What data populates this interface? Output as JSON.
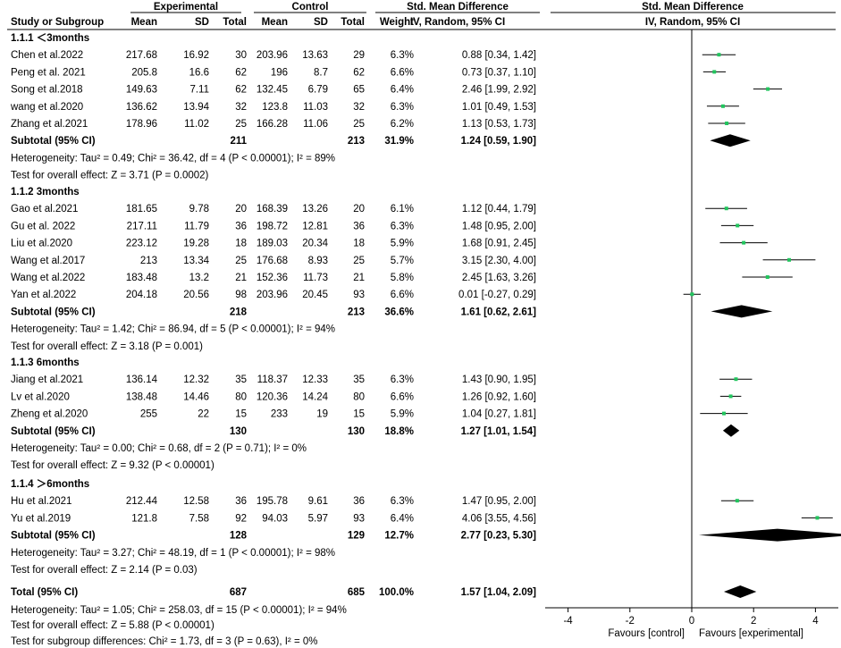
{
  "header": {
    "group1": "Experimental",
    "group2": "Control",
    "smd_title": "Std. Mean Difference",
    "method": "IV, Random, 95% CI",
    "plot_title": "Std. Mean Difference",
    "plot_method": "IV, Random, 95% CI",
    "col_study": "Study or Subgroup",
    "col_mean1": "Mean",
    "col_sd1": "SD",
    "col_total1": "Total",
    "col_mean2": "Mean",
    "col_sd2": "SD",
    "col_total2": "Total",
    "col_weight": "Weight"
  },
  "chart_data": {
    "type": "forest",
    "x_axis": {
      "min": -4.7,
      "max": 4.7,
      "ticks": [
        -4,
        -2,
        0,
        2,
        4
      ],
      "tick_labels": [
        "-4",
        "-2",
        "0",
        "2",
        "4"
      ],
      "label_left": "Favours [control]",
      "label_right": "Favours [experimental]"
    },
    "subgroups": [
      {
        "title": "1.1.1 ＜3months",
        "studies": [
          {
            "name": "Chen et al.2022",
            "m1": "217.68",
            "sd1": "16.92",
            "n1": "30",
            "m2": "203.96",
            "sd2": "13.63",
            "n2": "29",
            "weight": "6.3%",
            "ci_text": "0.88 [0.34, 1.42]",
            "est": 0.88,
            "lo": 0.34,
            "hi": 1.42
          },
          {
            "name": "Peng et al. 2021",
            "m1": "205.8",
            "sd1": "16.6",
            "n1": "62",
            "m2": "196",
            "sd2": "8.7",
            "n2": "62",
            "weight": "6.6%",
            "ci_text": "0.73 [0.37, 1.10]",
            "est": 0.73,
            "lo": 0.37,
            "hi": 1.1
          },
          {
            "name": "Song et al.2018",
            "m1": "149.63",
            "sd1": "7.11",
            "n1": "62",
            "m2": "132.45",
            "sd2": "6.79",
            "n2": "65",
            "weight": "6.4%",
            "ci_text": "2.46 [1.99, 2.92]",
            "est": 2.46,
            "lo": 1.99,
            "hi": 2.92
          },
          {
            "name": "wang et al.2020",
            "m1": "136.62",
            "sd1": "13.94",
            "n1": "32",
            "m2": "123.8",
            "sd2": "11.03",
            "n2": "32",
            "weight": "6.3%",
            "ci_text": "1.01 [0.49, 1.53]",
            "est": 1.01,
            "lo": 0.49,
            "hi": 1.53
          },
          {
            "name": "Zhang et al.2021",
            "m1": "178.96",
            "sd1": "11.02",
            "n1": "25",
            "m2": "166.28",
            "sd2": "11.06",
            "n2": "25",
            "weight": "6.2%",
            "ci_text": "1.13 [0.53, 1.73]",
            "est": 1.13,
            "lo": 0.53,
            "hi": 1.73
          }
        ],
        "subtotal": {
          "label": "Subtotal (95% CI)",
          "n1": "211",
          "n2": "213",
          "weight": "31.9%",
          "ci_text": "1.24 [0.59, 1.90]",
          "est": 1.24,
          "lo": 0.59,
          "hi": 1.9
        },
        "heterogeneity": "Heterogeneity: Tau² = 0.49; Chi² = 36.42, df = 4 (P < 0.00001); I² = 89%",
        "overall_effect": "Test for overall effect: Z = 3.71 (P = 0.0002)"
      },
      {
        "title": "1.1.2 3months",
        "studies": [
          {
            "name": "Gao et al.2021",
            "m1": "181.65",
            "sd1": "9.78",
            "n1": "20",
            "m2": "168.39",
            "sd2": "13.26",
            "n2": "20",
            "weight": "6.1%",
            "ci_text": "1.12 [0.44, 1.79]",
            "est": 1.12,
            "lo": 0.44,
            "hi": 1.79
          },
          {
            "name": "Gu et al. 2022",
            "m1": "217.11",
            "sd1": "11.79",
            "n1": "36",
            "m2": "198.72",
            "sd2": "12.81",
            "n2": "36",
            "weight": "6.3%",
            "ci_text": "1.48 [0.95, 2.00]",
            "est": 1.48,
            "lo": 0.95,
            "hi": 2.0
          },
          {
            "name": "Liu et al.2020",
            "m1": "223.12",
            "sd1": "19.28",
            "n1": "18",
            "m2": "189.03",
            "sd2": "20.34",
            "n2": "18",
            "weight": "5.9%",
            "ci_text": "1.68 [0.91, 2.45]",
            "est": 1.68,
            "lo": 0.91,
            "hi": 2.45
          },
          {
            "name": "Wang et al.2017",
            "m1": "213",
            "sd1": "13.34",
            "n1": "25",
            "m2": "176.68",
            "sd2": "8.93",
            "n2": "25",
            "weight": "5.7%",
            "ci_text": "3.15 [2.30, 4.00]",
            "est": 3.15,
            "lo": 2.3,
            "hi": 4.0
          },
          {
            "name": "Wang et al.2022",
            "m1": "183.48",
            "sd1": "13.2",
            "n1": "21",
            "m2": "152.36",
            "sd2": "11.73",
            "n2": "21",
            "weight": "5.8%",
            "ci_text": "2.45 [1.63, 3.26]",
            "est": 2.45,
            "lo": 1.63,
            "hi": 3.26
          },
          {
            "name": "Yan et al.2022",
            "m1": "204.18",
            "sd1": "20.56",
            "n1": "98",
            "m2": "203.96",
            "sd2": "20.45",
            "n2": "93",
            "weight": "6.6%",
            "ci_text": "0.01 [-0.27, 0.29]",
            "est": 0.01,
            "lo": -0.27,
            "hi": 0.29
          }
        ],
        "subtotal": {
          "label": "Subtotal (95% CI)",
          "n1": "218",
          "n2": "213",
          "weight": "36.6%",
          "ci_text": "1.61 [0.62, 2.61]",
          "est": 1.61,
          "lo": 0.62,
          "hi": 2.61
        },
        "heterogeneity": "Heterogeneity: Tau² = 1.42; Chi² = 86.94, df = 5 (P < 0.00001); I² = 94%",
        "overall_effect": "Test for overall effect: Z = 3.18 (P = 0.001)"
      },
      {
        "title": "1.1.3 6months",
        "studies": [
          {
            "name": "Jiang et al.2021",
            "m1": "136.14",
            "sd1": "12.32",
            "n1": "35",
            "m2": "118.37",
            "sd2": "12.33",
            "n2": "35",
            "weight": "6.3%",
            "ci_text": "1.43 [0.90, 1.95]",
            "est": 1.43,
            "lo": 0.9,
            "hi": 1.95
          },
          {
            "name": "Lv et al.2020",
            "m1": "138.48",
            "sd1": "14.46",
            "n1": "80",
            "m2": "120.36",
            "sd2": "14.24",
            "n2": "80",
            "weight": "6.6%",
            "ci_text": "1.26 [0.92, 1.60]",
            "est": 1.26,
            "lo": 0.92,
            "hi": 1.6
          },
          {
            "name": "Zheng et al.2020",
            "m1": "255",
            "sd1": "22",
            "n1": "15",
            "m2": "233",
            "sd2": "19",
            "n2": "15",
            "weight": "5.9%",
            "ci_text": "1.04 [0.27, 1.81]",
            "est": 1.04,
            "lo": 0.27,
            "hi": 1.81
          }
        ],
        "subtotal": {
          "label": "Subtotal (95% CI)",
          "n1": "130",
          "n2": "130",
          "weight": "18.8%",
          "ci_text": "1.27 [1.01, 1.54]",
          "est": 1.27,
          "lo": 1.01,
          "hi": 1.54
        },
        "heterogeneity": "Heterogeneity: Tau² = 0.00; Chi² = 0.68, df = 2 (P = 0.71); I² = 0%",
        "overall_effect": "Test for overall effect: Z = 9.32 (P < 0.00001)"
      },
      {
        "title": "1.1.4 ＞6months",
        "studies": [
          {
            "name": "Hu et al.2021",
            "m1": "212.44",
            "sd1": "12.58",
            "n1": "36",
            "m2": "195.78",
            "sd2": "9.61",
            "n2": "36",
            "weight": "6.3%",
            "ci_text": "1.47 [0.95, 2.00]",
            "est": 1.47,
            "lo": 0.95,
            "hi": 2.0
          },
          {
            "name": "Yu et al.2019",
            "m1": "121.8",
            "sd1": "7.58",
            "n1": "92",
            "m2": "94.03",
            "sd2": "5.97",
            "n2": "93",
            "weight": "6.4%",
            "ci_text": "4.06 [3.55, 4.56]",
            "est": 4.06,
            "lo": 3.55,
            "hi": 4.56
          }
        ],
        "subtotal": {
          "label": "Subtotal (95% CI)",
          "n1": "128",
          "n2": "129",
          "weight": "12.7%",
          "ci_text": "2.77 [0.23, 5.30]",
          "est": 2.77,
          "lo": 0.23,
          "hi": 5.3
        },
        "heterogeneity": "Heterogeneity: Tau² = 3.27; Chi² = 48.19, df = 1 (P < 0.00001); I² = 98%",
        "overall_effect": "Test for overall effect: Z = 2.14 (P = 0.03)"
      }
    ],
    "total": {
      "label": "Total (95% CI)",
      "n1": "687",
      "n2": "685",
      "weight": "100.0%",
      "ci_text": "1.57 [1.04, 2.09]",
      "est": 1.57,
      "lo": 1.04,
      "hi": 2.09,
      "heterogeneity": "Heterogeneity: Tau² = 1.05; Chi² = 258.03, df = 15 (P < 0.00001); I² = 94%",
      "overall_effect": "Test for overall effect: Z = 5.88 (P < 0.00001)",
      "subgroup_differences": "Test for subgroup differences: Chi² = 1.73, df = 3 (P = 0.63), I² = 0%"
    },
    "colors": {
      "point": "#22c55e",
      "diamond": "#000000",
      "line": "#000000"
    }
  }
}
